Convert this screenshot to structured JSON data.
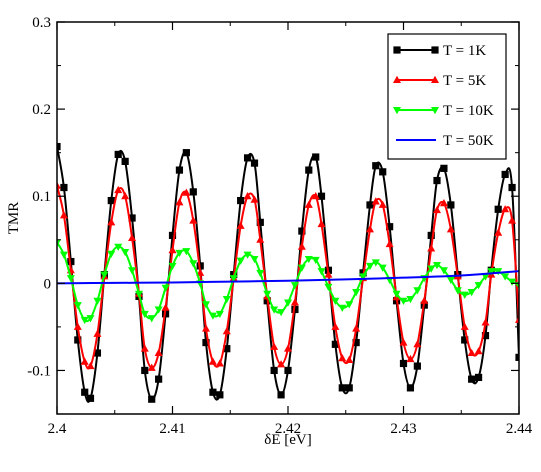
{
  "chart_data": {
    "type": "line",
    "title": "",
    "xlabel": "δE [eV]",
    "ylabel": "TMR",
    "xlim": [
      2.4,
      2.44
    ],
    "ylim": [
      -0.15,
      0.3
    ],
    "x_ticks": [
      {
        "value": 2.4,
        "label": "2.4"
      },
      {
        "value": 2.41,
        "label": "2.41"
      },
      {
        "value": 2.42,
        "label": "2.42"
      },
      {
        "value": 2.43,
        "label": "2.43"
      },
      {
        "value": 2.44,
        "label": "2.44"
      }
    ],
    "y_ticks": [
      {
        "value": -0.1,
        "label": "-0.1"
      },
      {
        "value": 0,
        "label": "0"
      },
      {
        "value": 0.1,
        "label": "0.1"
      },
      {
        "value": 0.2,
        "label": "0.2"
      },
      {
        "value": 0.3,
        "label": "0.3"
      }
    ],
    "grid": false,
    "legend_position": "top-right",
    "series": [
      {
        "name": "T = 1K",
        "color": "#000000",
        "marker": "square",
        "x": [
          2.4,
          2.4006,
          2.4012,
          2.4018,
          2.4024,
          2.4029,
          2.4035,
          2.4041,
          2.4047,
          2.4053,
          2.4059,
          2.4065,
          2.4071,
          2.4076,
          2.4082,
          2.4088,
          2.4094,
          2.41,
          2.4106,
          2.4112,
          2.4118,
          2.4124,
          2.4129,
          2.4135,
          2.4141,
          2.4147,
          2.4153,
          2.4159,
          2.4165,
          2.4171,
          2.4176,
          2.4182,
          2.4188,
          2.4194,
          2.42,
          2.4206,
          2.4212,
          2.4218,
          2.4224,
          2.4229,
          2.4235,
          2.4241,
          2.4247,
          2.4253,
          2.4259,
          2.4265,
          2.4271,
          2.4276,
          2.4282,
          2.4288,
          2.4294,
          2.43,
          2.4306,
          2.4312,
          2.4318,
          2.4324,
          2.4329,
          2.4335,
          2.4341,
          2.4347,
          2.4353,
          2.4359,
          2.4365,
          2.4371,
          2.4376,
          2.4382,
          2.4388,
          2.4394,
          2.44
        ],
        "y": [
          0.157,
          0.11,
          0.025,
          -0.065,
          -0.125,
          -0.132,
          -0.08,
          0.01,
          0.095,
          0.148,
          0.14,
          0.075,
          -0.015,
          -0.1,
          -0.133,
          -0.11,
          -0.035,
          0.055,
          0.13,
          0.15,
          0.105,
          0.02,
          -0.068,
          -0.125,
          -0.128,
          -0.075,
          0.01,
          0.095,
          0.144,
          0.138,
          0.07,
          -0.02,
          -0.1,
          -0.128,
          -0.1,
          -0.03,
          0.06,
          0.13,
          0.145,
          0.1,
          0.015,
          -0.07,
          -0.12,
          -0.12,
          -0.068,
          0.012,
          0.09,
          0.135,
          0.128,
          0.065,
          -0.02,
          -0.092,
          -0.12,
          -0.095,
          -0.025,
          0.055,
          0.118,
          0.132,
          0.09,
          0.01,
          -0.065,
          -0.11,
          -0.108,
          -0.06,
          0.015,
          0.085,
          0.125,
          0.11,
          -0.085
        ]
      },
      {
        "name": "T = 5K",
        "color": "#ff0000",
        "marker": "triangle-up",
        "x": [
          2.4,
          2.4006,
          2.4012,
          2.4018,
          2.4024,
          2.4029,
          2.4035,
          2.4041,
          2.4047,
          2.4053,
          2.4059,
          2.4065,
          2.4071,
          2.4076,
          2.4082,
          2.4088,
          2.4094,
          2.41,
          2.4106,
          2.4112,
          2.4118,
          2.4124,
          2.4129,
          2.4135,
          2.4141,
          2.4147,
          2.4153,
          2.4159,
          2.4165,
          2.4171,
          2.4176,
          2.4182,
          2.4188,
          2.4194,
          2.42,
          2.4206,
          2.4212,
          2.4218,
          2.4224,
          2.4229,
          2.4235,
          2.4241,
          2.4247,
          2.4253,
          2.4259,
          2.4265,
          2.4271,
          2.4276,
          2.4282,
          2.4288,
          2.4294,
          2.43,
          2.4306,
          2.4312,
          2.4318,
          2.4324,
          2.4329,
          2.4335,
          2.4341,
          2.4347,
          2.4353,
          2.4359,
          2.4365,
          2.4371,
          2.4376,
          2.4382,
          2.4388,
          2.4394,
          2.44
        ],
        "y": [
          0.112,
          0.078,
          0.015,
          -0.05,
          -0.09,
          -0.095,
          -0.058,
          0.008,
          0.07,
          0.107,
          0.1,
          0.052,
          -0.012,
          -0.075,
          -0.097,
          -0.08,
          -0.028,
          0.038,
          0.093,
          0.104,
          0.072,
          0.012,
          -0.052,
          -0.09,
          -0.092,
          -0.055,
          0.006,
          0.066,
          0.1,
          0.096,
          0.05,
          -0.015,
          -0.073,
          -0.093,
          -0.075,
          -0.022,
          0.042,
          0.09,
          0.1,
          0.068,
          0.01,
          -0.05,
          -0.086,
          -0.088,
          -0.052,
          0.006,
          0.062,
          0.094,
          0.09,
          0.045,
          -0.016,
          -0.068,
          -0.087,
          -0.07,
          -0.02,
          0.04,
          0.084,
          0.092,
          0.062,
          0.008,
          -0.05,
          -0.08,
          -0.078,
          -0.045,
          0.01,
          0.058,
          0.085,
          0.072,
          -0.042
        ]
      },
      {
        "name": "T = 10K",
        "color": "#00ff00",
        "marker": "triangle-down",
        "x": [
          2.4,
          2.4006,
          2.4012,
          2.4018,
          2.4024,
          2.4029,
          2.4035,
          2.4041,
          2.4047,
          2.4053,
          2.4059,
          2.4065,
          2.4071,
          2.4076,
          2.4082,
          2.4088,
          2.4094,
          2.41,
          2.4106,
          2.4112,
          2.4118,
          2.4124,
          2.4129,
          2.4135,
          2.4141,
          2.4147,
          2.4153,
          2.4159,
          2.4165,
          2.4171,
          2.4176,
          2.4182,
          2.4188,
          2.4194,
          2.42,
          2.4206,
          2.4212,
          2.4218,
          2.4224,
          2.4229,
          2.4235,
          2.4241,
          2.4247,
          2.4253,
          2.4259,
          2.4265,
          2.4271,
          2.4276,
          2.4282,
          2.4288,
          2.4294,
          2.43,
          2.4306,
          2.4312,
          2.4318,
          2.4324,
          2.4329,
          2.4335,
          2.4341,
          2.4347,
          2.4353,
          2.4359,
          2.4365,
          2.4371,
          2.4376,
          2.4382,
          2.4388,
          2.4394,
          2.44
        ],
        "y": [
          0.047,
          0.033,
          0.006,
          -0.025,
          -0.042,
          -0.04,
          -0.02,
          0.01,
          0.034,
          0.042,
          0.036,
          0.015,
          -0.012,
          -0.035,
          -0.04,
          -0.03,
          -0.005,
          0.02,
          0.035,
          0.037,
          0.023,
          0.0,
          -0.024,
          -0.037,
          -0.035,
          -0.018,
          0.006,
          0.026,
          0.033,
          0.028,
          0.012,
          -0.012,
          -0.03,
          -0.033,
          -0.022,
          -0.002,
          0.018,
          0.028,
          0.027,
          0.014,
          -0.004,
          -0.02,
          -0.028,
          -0.024,
          -0.01,
          0.008,
          0.02,
          0.024,
          0.018,
          0.004,
          -0.012,
          -0.02,
          -0.018,
          -0.008,
          0.006,
          0.017,
          0.021,
          0.015,
          0.004,
          -0.008,
          -0.013,
          -0.01,
          -0.002,
          0.008,
          0.014,
          0.014,
          0.008,
          0.002,
          -0.002
        ]
      },
      {
        "name": "T = 50K",
        "color": "#0000ff",
        "marker": "none",
        "x": [
          2.4,
          2.405,
          2.41,
          2.415,
          2.42,
          2.425,
          2.43,
          2.435,
          2.44
        ],
        "y": [
          0.0,
          0.0005,
          0.001,
          0.002,
          0.003,
          0.0045,
          0.0065,
          0.009,
          0.014
        ]
      }
    ]
  }
}
